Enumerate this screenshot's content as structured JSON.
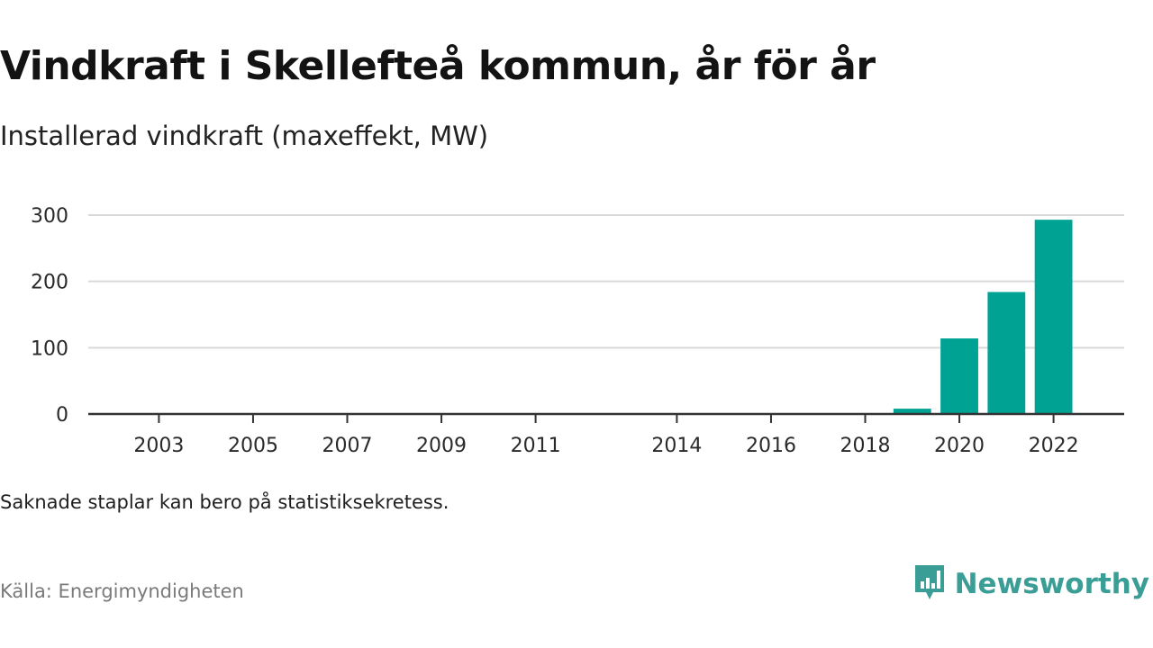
{
  "header": {
    "title": "Vindkraft i Skellefteå kommun, år för år",
    "subtitle": "Installerad vindkraft (maxeffekt, MW)"
  },
  "footer": {
    "note": "Saknade staplar kan bero på statistiksekretess.",
    "source": "Källa: Energimyndigheten",
    "brand": "Newsworthy",
    "brand_icon": "newsworthy-logo-icon"
  },
  "colors": {
    "bar": "#00a294",
    "grid": "#d9d9d9",
    "axis": "#333333",
    "brand": "#3a9e96"
  },
  "chart_data": {
    "type": "bar",
    "title": "Vindkraft i Skellefteå kommun, år för år",
    "subtitle": "Installerad vindkraft (maxeffekt, MW)",
    "categories": [
      2003,
      2004,
      2005,
      2006,
      2007,
      2008,
      2009,
      2010,
      2011,
      2012,
      2013,
      2014,
      2015,
      2016,
      2017,
      2018,
      2019,
      2020,
      2021,
      2022
    ],
    "x_tick_labels": [
      "2003",
      "2005",
      "2007",
      "2009",
      "2011",
      "2014",
      "2016",
      "2018",
      "2020",
      "2022"
    ],
    "values": [
      0,
      0,
      0,
      0,
      0,
      0,
      0,
      0,
      0,
      null,
      null,
      0,
      0,
      0,
      0,
      0,
      8,
      114,
      184,
      293
    ],
    "y_ticks": [
      0,
      100,
      200,
      300
    ],
    "y_tick_labels": [
      "0",
      "100",
      "200",
      "300"
    ],
    "ylim": [
      0,
      300
    ],
    "xlim": [
      2001.5,
      2023.5
    ],
    "grid": true,
    "legend": "none"
  }
}
